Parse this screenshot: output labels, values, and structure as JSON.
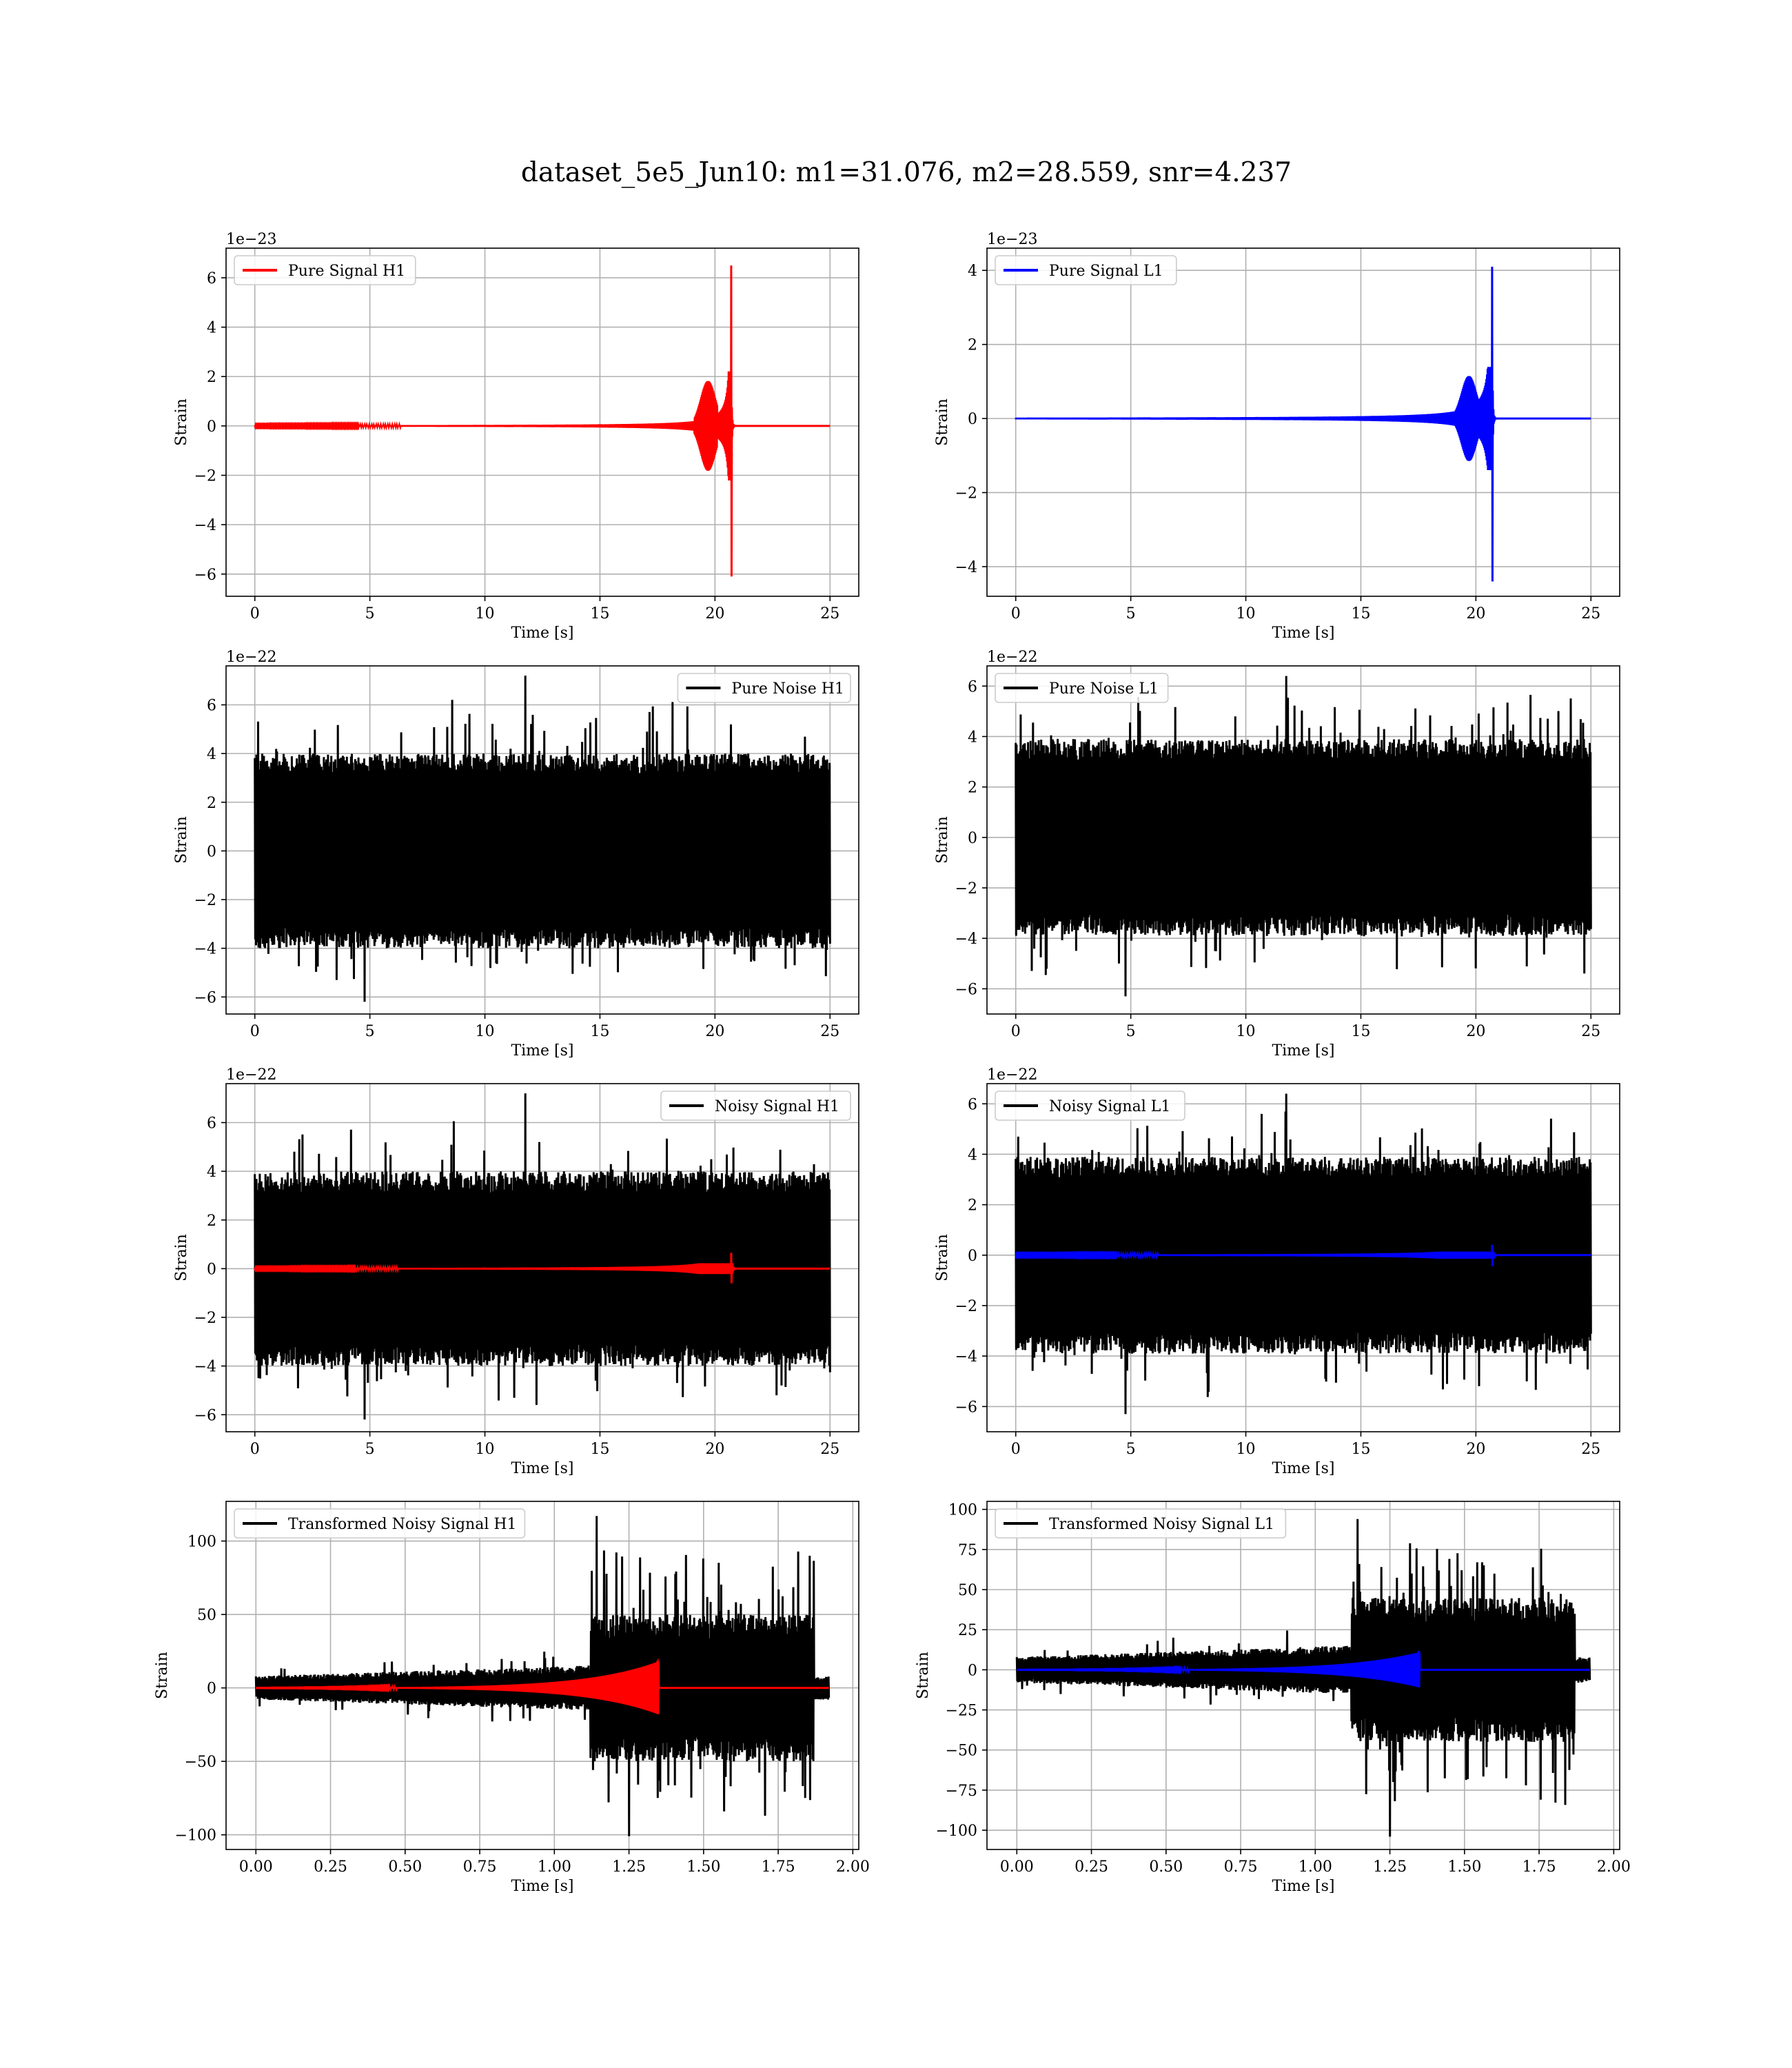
{
  "figure": {
    "suptitle": "dataset_5e5_Jun10: m1=31.076, m2=28.559, snr=4.237"
  },
  "chart_data": [
    {
      "id": "pure-signal-h1",
      "type": "line",
      "xlabel": "Time [s]",
      "ylabel": "Strain",
      "offset_text": "1e−23",
      "xlim": [
        -1.25,
        26.25
      ],
      "ylim": [
        -6.9,
        7.2
      ],
      "xticks": [
        0,
        5,
        10,
        15,
        20,
        25
      ],
      "xtick_labels": [
        "0",
        "5",
        "10",
        "15",
        "20",
        "25"
      ],
      "yticks": [
        -6,
        -4,
        -2,
        0,
        2,
        4,
        6
      ],
      "ytick_labels": [
        "−6",
        "−4",
        "−2",
        "0",
        "2",
        "4",
        "6"
      ],
      "grid": true,
      "legend_loc": "upper left",
      "series": [
        {
          "name": "Pure Signal H1",
          "color": "#ff0000",
          "kind": "chirp",
          "x_range": [
            0,
            25
          ],
          "merger_time": 20.7,
          "peak_amplitude": 6.5,
          "min_amplitude": -6.1
        }
      ]
    },
    {
      "id": "pure-signal-l1",
      "type": "line",
      "xlabel": "Time [s]",
      "ylabel": "Strain",
      "offset_text": "1e−23",
      "xlim": [
        -1.25,
        26.25
      ],
      "ylim": [
        -4.8,
        4.6
      ],
      "xticks": [
        0,
        5,
        10,
        15,
        20,
        25
      ],
      "xtick_labels": [
        "0",
        "5",
        "10",
        "15",
        "20",
        "25"
      ],
      "yticks": [
        -4,
        -2,
        0,
        2,
        4
      ],
      "ytick_labels": [
        "−4",
        "−2",
        "0",
        "2",
        "4"
      ],
      "grid": true,
      "legend_loc": "upper left",
      "series": [
        {
          "name": "Pure Signal L1",
          "color": "#0000ff",
          "kind": "chirp",
          "x_range": [
            0,
            25
          ],
          "merger_time": 20.7,
          "peak_amplitude": 4.1,
          "min_amplitude": -4.4
        }
      ]
    },
    {
      "id": "pure-noise-h1",
      "type": "line",
      "xlabel": "Time [s]",
      "ylabel": "Strain",
      "offset_text": "1e−22",
      "xlim": [
        -1.25,
        26.25
      ],
      "ylim": [
        -6.7,
        7.6
      ],
      "xticks": [
        0,
        5,
        10,
        15,
        20,
        25
      ],
      "xtick_labels": [
        "0",
        "5",
        "10",
        "15",
        "20",
        "25"
      ],
      "yticks": [
        -6,
        -4,
        -2,
        0,
        2,
        4,
        6
      ],
      "ytick_labels": [
        "−6",
        "−4",
        "−2",
        "0",
        "2",
        "4",
        "6"
      ],
      "grid": true,
      "legend_loc": "upper right",
      "series": [
        {
          "name": "Pure Noise H1",
          "color": "#000000",
          "kind": "noise",
          "x_range": [
            0,
            25
          ],
          "band": [
            -4.0,
            4.0
          ],
          "max_peak": 7.2,
          "min_peak": -6.2
        }
      ]
    },
    {
      "id": "pure-noise-l1",
      "type": "line",
      "xlabel": "Time [s]",
      "ylabel": "Strain",
      "offset_text": "1e−22",
      "xlim": [
        -1.25,
        26.25
      ],
      "ylim": [
        -7.0,
        6.8
      ],
      "xticks": [
        0,
        5,
        10,
        15,
        20,
        25
      ],
      "xtick_labels": [
        "0",
        "5",
        "10",
        "15",
        "20",
        "25"
      ],
      "yticks": [
        -6,
        -4,
        -2,
        0,
        2,
        4,
        6
      ],
      "ytick_labels": [
        "−6",
        "−4",
        "−2",
        "0",
        "2",
        "4",
        "6"
      ],
      "grid": true,
      "legend_loc": "upper left",
      "series": [
        {
          "name": "Pure Noise L1",
          "color": "#000000",
          "kind": "noise",
          "x_range": [
            0,
            25
          ],
          "band": [
            -3.9,
            3.9
          ],
          "max_peak": 6.4,
          "min_peak": -6.3
        }
      ]
    },
    {
      "id": "noisy-signal-h1",
      "type": "line",
      "xlabel": "Time [s]",
      "ylabel": "Strain",
      "offset_text": "1e−22",
      "xlim": [
        -1.25,
        26.25
      ],
      "ylim": [
        -6.7,
        7.6
      ],
      "xticks": [
        0,
        5,
        10,
        15,
        20,
        25
      ],
      "xtick_labels": [
        "0",
        "5",
        "10",
        "15",
        "20",
        "25"
      ],
      "yticks": [
        -6,
        -4,
        -2,
        0,
        2,
        4,
        6
      ],
      "ytick_labels": [
        "−6",
        "−4",
        "−2",
        "0",
        "2",
        "4",
        "6"
      ],
      "grid": true,
      "legend_loc": "upper right",
      "series": [
        {
          "name": "Noisy Signal H1",
          "color": "#000000",
          "kind": "noise",
          "x_range": [
            0,
            25
          ],
          "band": [
            -4.0,
            4.0
          ],
          "max_peak": 7.2,
          "min_peak": -6.2
        },
        {
          "name": "",
          "color": "#ff0000",
          "kind": "chirp",
          "x_range": [
            0,
            25
          ],
          "merger_time": 20.7,
          "peak_amplitude": 0.65,
          "min_amplitude": -0.6
        }
      ]
    },
    {
      "id": "noisy-signal-l1",
      "type": "line",
      "xlabel": "Time [s]",
      "ylabel": "Strain",
      "offset_text": "1e−22",
      "xlim": [
        -1.25,
        26.25
      ],
      "ylim": [
        -7.0,
        6.8
      ],
      "xticks": [
        0,
        5,
        10,
        15,
        20,
        25
      ],
      "xtick_labels": [
        "0",
        "5",
        "10",
        "15",
        "20",
        "25"
      ],
      "yticks": [
        -6,
        -4,
        -2,
        0,
        2,
        4,
        6
      ],
      "ytick_labels": [
        "−6",
        "−4",
        "−2",
        "0",
        "2",
        "4",
        "6"
      ],
      "grid": true,
      "legend_loc": "upper left",
      "series": [
        {
          "name": "Noisy Signal L1",
          "color": "#000000",
          "kind": "noise",
          "x_range": [
            0,
            25
          ],
          "band": [
            -3.9,
            3.9
          ],
          "max_peak": 6.4,
          "min_peak": -6.3
        },
        {
          "name": "",
          "color": "#0000ff",
          "kind": "chirp",
          "x_range": [
            0,
            25
          ],
          "merger_time": 20.7,
          "peak_amplitude": 0.41,
          "min_amplitude": -0.44
        }
      ]
    },
    {
      "id": "transformed-noisy-signal-h1",
      "type": "line",
      "xlabel": "Time [s]",
      "ylabel": "Strain",
      "offset_text": "",
      "xlim": [
        -0.1,
        2.02
      ],
      "ylim": [
        -110,
        127
      ],
      "xticks": [
        0,
        0.25,
        0.5,
        0.75,
        1.0,
        1.25,
        1.5,
        1.75,
        2.0
      ],
      "xtick_labels": [
        "0.00",
        "0.25",
        "0.50",
        "0.75",
        "1.00",
        "1.25",
        "1.50",
        "1.75",
        "2.00"
      ],
      "yticks": [
        -100,
        -50,
        0,
        50,
        100
      ],
      "ytick_labels": [
        "−100",
        "−50",
        "0",
        "50",
        "100"
      ],
      "grid": true,
      "legend_loc": "upper left",
      "series": [
        {
          "name": "Transformed Noisy Signal H1",
          "color": "#000000",
          "kind": "transformed",
          "x_range": [
            0,
            1.92
          ],
          "step_time": 1.12,
          "end_time": 1.87,
          "early_band": [
            -8,
            8
          ],
          "late_band": [
            -50,
            50
          ],
          "max_peak": 117,
          "min_peak": -101
        },
        {
          "name": "",
          "color": "#ff0000",
          "kind": "transformed-chirp",
          "x_range": [
            0,
            1.92
          ],
          "merger_time": 1.35,
          "peak_amplitude": 18,
          "min_amplitude": -17
        }
      ]
    },
    {
      "id": "transformed-noisy-signal-l1",
      "type": "line",
      "xlabel": "Time [s]",
      "ylabel": "Strain",
      "offset_text": "",
      "xlim": [
        -0.1,
        2.02
      ],
      "ylim": [
        -112,
        105
      ],
      "xticks": [
        0,
        0.25,
        0.5,
        0.75,
        1.0,
        1.25,
        1.5,
        1.75,
        2.0
      ],
      "xtick_labels": [
        "0.00",
        "0.25",
        "0.50",
        "0.75",
        "1.00",
        "1.25",
        "1.50",
        "1.75",
        "2.00"
      ],
      "yticks": [
        -100,
        -75,
        -50,
        -25,
        0,
        25,
        50,
        75,
        100
      ],
      "ytick_labels": [
        "−100",
        "−75",
        "−50",
        "−25",
        "0",
        "25",
        "50",
        "75",
        "100"
      ],
      "grid": true,
      "legend_loc": "upper left",
      "series": [
        {
          "name": "Transformed Noisy Signal L1",
          "color": "#000000",
          "kind": "transformed",
          "x_range": [
            0,
            1.92
          ],
          "step_time": 1.12,
          "end_time": 1.87,
          "early_band": [
            -8,
            8
          ],
          "late_band": [
            -45,
            45
          ],
          "max_peak": 94,
          "min_peak": -104
        },
        {
          "name": "",
          "color": "#0000ff",
          "kind": "transformed-chirp",
          "x_range": [
            0,
            1.92
          ],
          "merger_time": 1.35,
          "peak_amplitude": 11,
          "min_amplitude": -10
        }
      ]
    }
  ]
}
